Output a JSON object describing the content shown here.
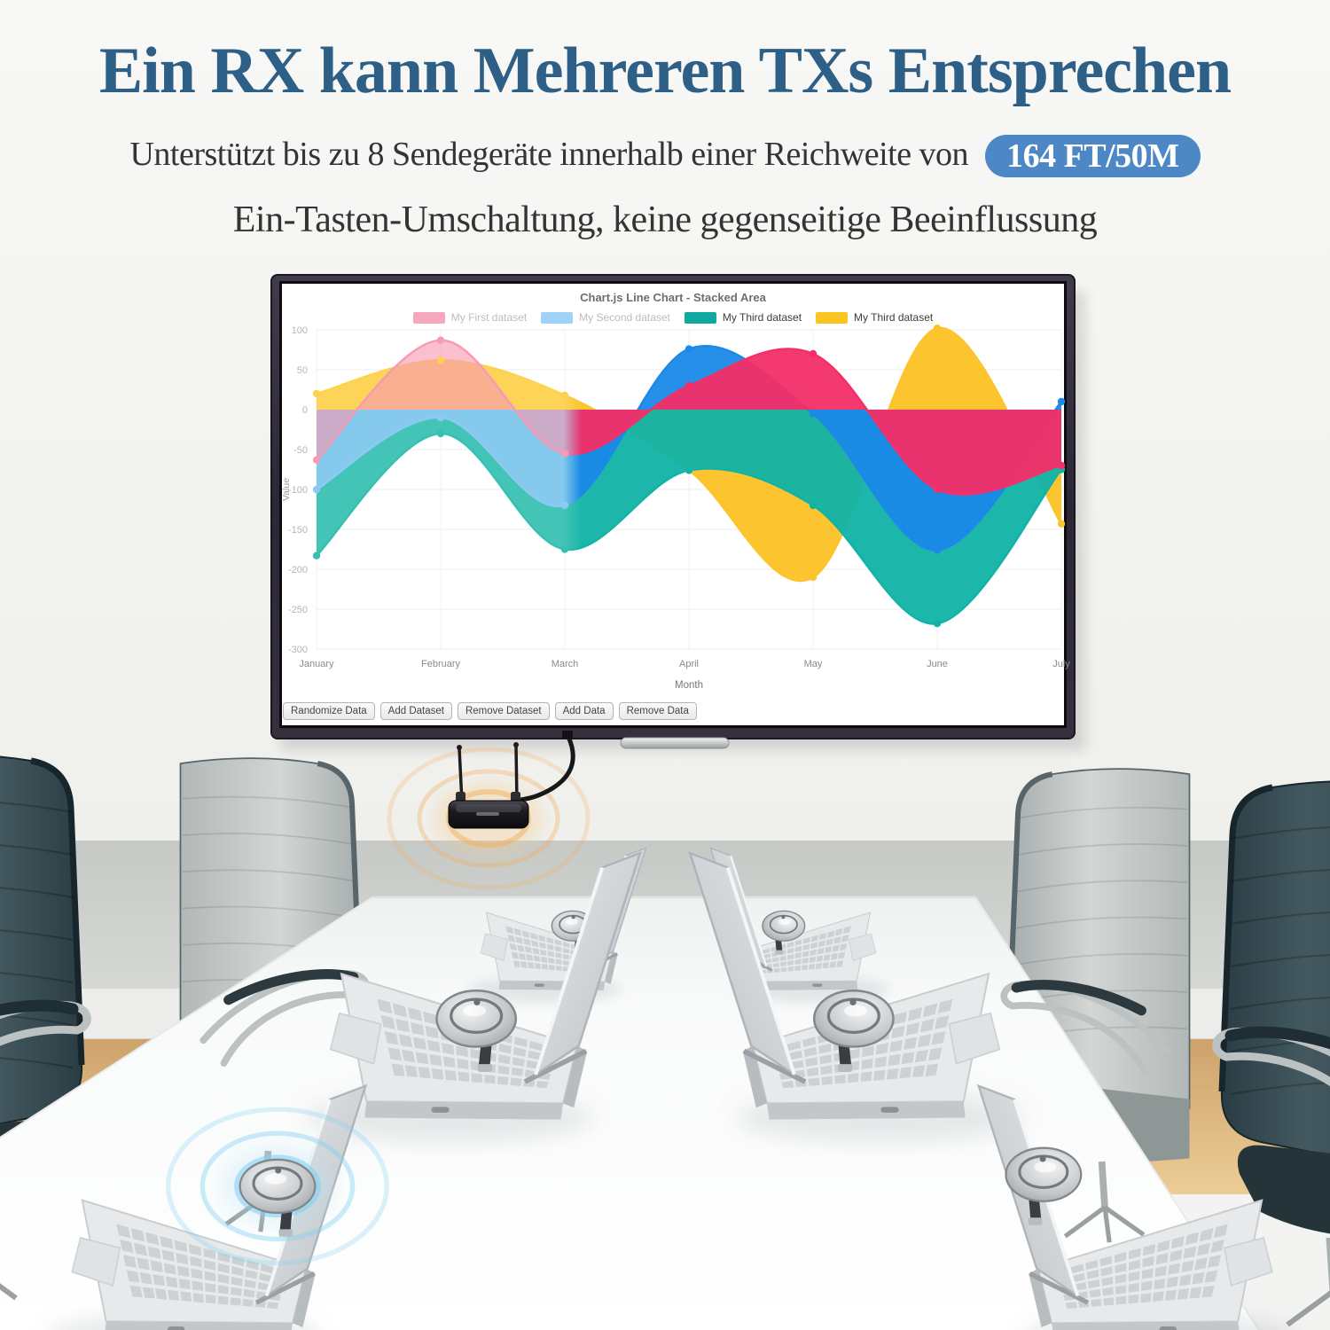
{
  "headline": {
    "title": "Ein RX kann Mehreren TXs Entsprechen",
    "color": "#2e5f86"
  },
  "subtitle": {
    "prefix": "Unterstützt bis zu 8 Sendegeräte innerhalb einer Reichweite von",
    "badge": "164 FT/50M",
    "badge_color": "#4d87c6",
    "line2": "Ein-Tasten-Umschaltung, keine gegenseitige Beeinflussung"
  },
  "tv": {
    "buttons": [
      {
        "label": "Randomize Data"
      },
      {
        "label": "Add Dataset"
      },
      {
        "label": "Remove Dataset"
      },
      {
        "label": "Add Data"
      },
      {
        "label": "Remove Data"
      }
    ]
  },
  "chart_data": {
    "type": "area",
    "title": "Chart.js Line Chart - Stacked Area",
    "categories": [
      "January",
      "February",
      "March",
      "April",
      "May",
      "June",
      "July"
    ],
    "xlabel": "Month",
    "ylabel": "Value",
    "ylim": [
      -300,
      100
    ],
    "ytick_step": 50,
    "grid": true,
    "legend_position": "top",
    "fill_origin": 0,
    "series": [
      {
        "name": "My First dataset",
        "values": [
          -63,
          87,
          -55,
          30,
          70,
          -100,
          -70
        ],
        "color_left": "#f79ab3",
        "color_right": "#f32e68",
        "legend_swatch": "#f6a7bd",
        "legend_text_color": "#bdbdbd",
        "alpha_left": 0.62,
        "alpha_right": 0.95
      },
      {
        "name": "My Second dataset",
        "values": [
          -100,
          -10,
          -120,
          76,
          -5,
          -176,
          10
        ],
        "color_left": "#8ccaf3",
        "color_right": "#1a89e8",
        "legend_swatch": "#9ed2f6",
        "legend_text_color": "#bdbdbd",
        "alpha_left": 0.9,
        "alpha_right": 0.95
      },
      {
        "name": "My Third dataset",
        "values": [
          -183,
          -30,
          -175,
          -76,
          -120,
          -268,
          -75
        ],
        "color_left": "#36c0b1",
        "color_right": "#10b3a6",
        "legend_swatch": "#0fa99f",
        "legend_text_color": "#3c3c3c",
        "alpha_left": 0.93,
        "alpha_right": 0.95
      },
      {
        "name": "My Third dataset",
        "values": [
          20,
          62,
          18,
          -76,
          -210,
          102,
          -143
        ],
        "color_left": "#fdd24f",
        "color_right": "#fcc32a",
        "legend_swatch": "#f9c61f",
        "legend_text_color": "#3c3c3c",
        "alpha_left": 0.95,
        "alpha_right": 0.97
      }
    ],
    "draw_order": [
      3,
      2,
      1,
      0
    ],
    "seam_fraction": 0.343
  },
  "scene": {
    "signal_color_orange": "#f0ad60",
    "signal_color_blue": "#7ed0f0",
    "wall_color": "#f3f3f1",
    "band_color": "#cccfcc",
    "wood_color": "#d9ae77",
    "table_color": "#fafbfb",
    "chair_dark": "#3c525b",
    "chair_light": "#c3c9c8"
  }
}
